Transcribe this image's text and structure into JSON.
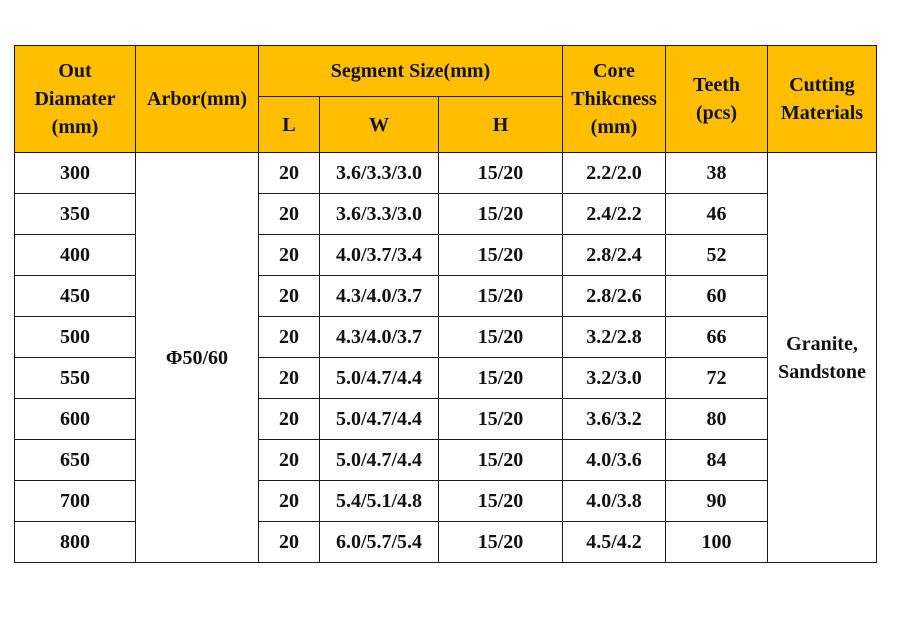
{
  "headers": {
    "out_diameter": [
      "Out",
      "Diamater",
      "(mm)"
    ],
    "arbor": "Arbor(mm)",
    "segment_size": "Segment Size(mm)",
    "seg_l": "L",
    "seg_w": "W",
    "seg_h": "H",
    "core": [
      "Core",
      "Thikcness",
      "(mm)"
    ],
    "teeth": [
      "Teeth",
      "(pcs)"
    ],
    "cutting": [
      "Cutting",
      "Materials"
    ]
  },
  "arbor_value": "Φ50/60",
  "cutting_value": [
    "Granite,",
    "Sandstone"
  ],
  "rows": [
    {
      "diameter": "300",
      "l": "20",
      "w": "3.6/3.3/3.0",
      "h": "15/20",
      "core": "2.2/2.0",
      "teeth": "38"
    },
    {
      "diameter": "350",
      "l": "20",
      "w": "3.6/3.3/3.0",
      "h": "15/20",
      "core": "2.4/2.2",
      "teeth": "46"
    },
    {
      "diameter": "400",
      "l": "20",
      "w": "4.0/3.7/3.4",
      "h": "15/20",
      "core": "2.8/2.4",
      "teeth": "52"
    },
    {
      "diameter": "450",
      "l": "20",
      "w": "4.3/4.0/3.7",
      "h": "15/20",
      "core": "2.8/2.6",
      "teeth": "60"
    },
    {
      "diameter": "500",
      "l": "20",
      "w": "4.3/4.0/3.7",
      "h": "15/20",
      "core": "3.2/2.8",
      "teeth": "66"
    },
    {
      "diameter": "550",
      "l": "20",
      "w": "5.0/4.7/4.4",
      "h": "15/20",
      "core": "3.2/3.0",
      "teeth": "72"
    },
    {
      "diameter": "600",
      "l": "20",
      "w": "5.0/4.7/4.4",
      "h": "15/20",
      "core": "3.6/3.2",
      "teeth": "80"
    },
    {
      "diameter": "650",
      "l": "20",
      "w": "5.0/4.7/4.4",
      "h": "15/20",
      "core": "4.0/3.6",
      "teeth": "84"
    },
    {
      "diameter": "700",
      "l": "20",
      "w": "5.4/5.1/4.8",
      "h": "15/20",
      "core": "4.0/3.8",
      "teeth": "90"
    },
    {
      "diameter": "800",
      "l": "20",
      "w": "6.0/5.7/5.4",
      "h": "15/20",
      "core": "4.5/4.2",
      "teeth": "100"
    }
  ],
  "colors": {
    "header_bg": "#ffbf00",
    "border": "#1a1a1a",
    "text": "#111111"
  }
}
